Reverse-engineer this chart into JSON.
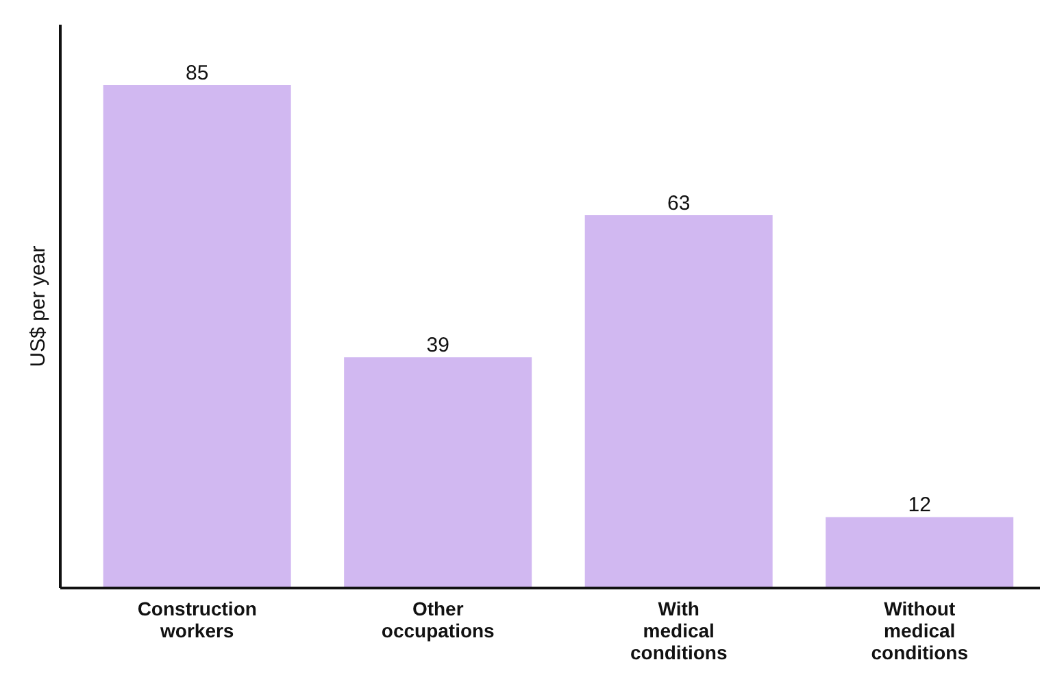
{
  "chart_data": {
    "type": "bar",
    "ylabel": "US$ per year",
    "categories": [
      "Construction workers",
      "Other occupations",
      "With medical conditions",
      "Without medical conditions"
    ],
    "values": [
      85,
      39,
      63,
      12
    ],
    "color": "#d1b8f1",
    "data_labels": true,
    "grid": false,
    "legend": false
  }
}
